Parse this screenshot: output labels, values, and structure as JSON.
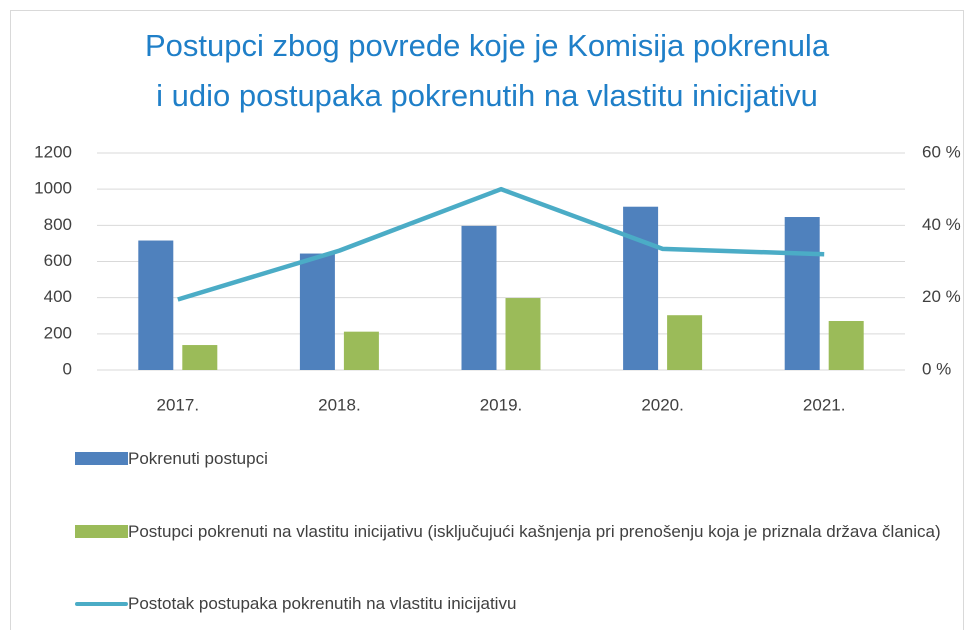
{
  "chart_data": {
    "type": "bar",
    "title": [
      "Postupci zbog povrede koje je Komisija pokrenula",
      "i udio postupaka pokrenutih na vlastitu inicijativu"
    ],
    "categories": [
      "2017.",
      "2018.",
      "2019.",
      "2020.",
      "2021."
    ],
    "series": [
      {
        "name": "Pokrenuti postupci",
        "color": "#4f81bd",
        "values": [
          716,
          644,
          797,
          903,
          846
        ]
      },
      {
        "name": "Postupci pokrenuti na vlastitu inicijativu (isključujući kašnjenja pri prenošenju koja je priznala država članica)",
        "color": "#9bbb59",
        "values": [
          138,
          212,
          398,
          303,
          271
        ]
      },
      {
        "name": "Postotak postupaka pokrenutih na vlastitu inicijativu",
        "color": "#4bacc6",
        "type": "line",
        "axis": "y2",
        "values": [
          19.5,
          33,
          50,
          33.5,
          32
        ]
      }
    ],
    "ylim": [
      0,
      1200
    ],
    "yticks": [
      0,
      200,
      400,
      600,
      800,
      1000,
      1200
    ],
    "y2lim": [
      0,
      60
    ],
    "y2ticks": [
      {
        "value": 0,
        "label": "0 %"
      },
      {
        "value": 20,
        "label": "20 %"
      },
      {
        "value": 40,
        "label": "40 %"
      },
      {
        "value": 60,
        "label": "60 %"
      }
    ],
    "grid": true,
    "legend": "bottom"
  }
}
